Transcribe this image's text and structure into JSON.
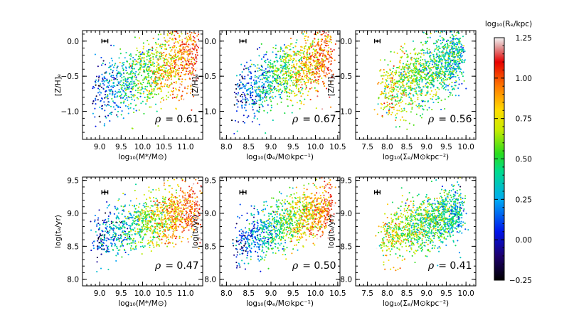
{
  "chart_data": {
    "type": "scatter",
    "colorbar": {
      "label": "log₁₀(Rₑ/kpc)",
      "range": [
        -0.25,
        1.25
      ],
      "ticks": [
        "−0.25",
        "0.00",
        "0.25",
        "0.50",
        "0.75",
        "1.00",
        "1.25"
      ],
      "tick_values": [
        -0.25,
        0,
        0.25,
        0.5,
        0.75,
        1.0,
        1.25
      ]
    },
    "panels": [
      {
        "id": "p1",
        "row": 0,
        "col": 0,
        "xlabel": "log₁₀(M*/M⊙)",
        "ylabel": "[Z/H]ₑ",
        "xlim": [
          8.6,
          11.4
        ],
        "ylim": [
          -1.4,
          0.15
        ],
        "xticks": [
          9.0,
          9.5,
          10.0,
          10.5,
          11.0
        ],
        "xtick_labels": [
          "9.0",
          "9.5",
          "10.0",
          "10.5",
          "11.0"
        ],
        "yticks": [
          0.0,
          -0.5,
          -1.0
        ],
        "ytick_labels": [
          "0.0",
          "−0.5",
          "−1.0"
        ],
        "annotation_symbol": "ρ",
        "annotation_value": "= 0.61",
        "errorbar": {
          "x": 9.12,
          "y": 0.0,
          "xerr": 0.07,
          "yerr": 0.02
        },
        "trend": {
          "x_range": [
            8.85,
            11.3
          ],
          "y_at_xmin": -0.72,
          "y_at_xmax": -0.22,
          "scatter": 0.24,
          "n_points": 1300,
          "color_slope": 0.45,
          "color_center": 10.0
        }
      },
      {
        "id": "p2",
        "row": 0,
        "col": 1,
        "xlabel": "log₁₀(Φₑ/M⊙kpc⁻¹)",
        "ylabel": "[Z/H]ₑ",
        "xlim": [
          7.85,
          10.55
        ],
        "ylim": [
          -1.4,
          0.15
        ],
        "xticks": [
          8.0,
          8.5,
          9.0,
          9.5,
          10.0,
          10.5
        ],
        "xtick_labels": [
          "8.0",
          "8.5",
          "9.0",
          "9.5",
          "10.0",
          "10.5"
        ],
        "yticks": [
          0.0,
          -0.5,
          -1.0
        ],
        "ytick_labels": [
          "0.0",
          "−0.5",
          "−1.0"
        ],
        "annotation_symbol": "ρ",
        "annotation_value": "= 0.67",
        "errorbar": {
          "x": 8.37,
          "y": 0.0,
          "xerr": 0.07,
          "yerr": 0.02
        },
        "trend": {
          "x_range": [
            8.2,
            10.35
          ],
          "y_at_xmin": -0.8,
          "y_at_xmax": -0.18,
          "scatter": 0.22,
          "n_points": 1300,
          "color_slope": 0.5,
          "color_center": 9.3
        }
      },
      {
        "id": "p3",
        "row": 0,
        "col": 2,
        "xlabel": "log₁₀(Σₑ/M⊙kpc⁻²)",
        "ylabel": "[Z/H]ₑ",
        "xlim": [
          7.2,
          10.25
        ],
        "ylim": [
          -1.4,
          0.15
        ],
        "xticks": [
          7.5,
          8.0,
          8.5,
          9.0,
          9.5,
          10.0
        ],
        "xtick_labels": [
          "7.5",
          "8.0",
          "8.5",
          "9.0",
          "9.5",
          "10.0"
        ],
        "yticks": [
          0.0,
          -0.5,
          -1.0
        ],
        "ytick_labels": [
          "0.0",
          "−0.5",
          "−1.0"
        ],
        "annotation_symbol": "ρ",
        "annotation_value": "= 0.56",
        "errorbar": {
          "x": 7.75,
          "y": 0.0,
          "xerr": 0.07,
          "yerr": 0.02
        },
        "trend": {
          "x_range": [
            7.8,
            9.9
          ],
          "y_at_xmin": -0.75,
          "y_at_xmax": -0.2,
          "scatter": 0.23,
          "n_points": 1300,
          "color_slope": -0.2,
          "color_center": 8.8
        }
      },
      {
        "id": "p4",
        "row": 1,
        "col": 0,
        "xlabel": "log₁₀(M*/M⊙)",
        "ylabel": "log(tₑ/yr)",
        "xlim": [
          8.6,
          11.4
        ],
        "ylim": [
          7.9,
          9.55
        ],
        "xticks": [
          9.0,
          9.5,
          10.0,
          10.5,
          11.0
        ],
        "xtick_labels": [
          "9.0",
          "9.5",
          "10.0",
          "10.5",
          "11.0"
        ],
        "yticks": [
          8.0,
          8.5,
          9.0,
          9.5
        ],
        "ytick_labels": [
          "8.0",
          "8.5",
          "9.0",
          "9.5"
        ],
        "annotation_symbol": "ρ",
        "annotation_value": "= 0.47",
        "errorbar": {
          "x": 9.12,
          "y": 9.32,
          "xerr": 0.07,
          "yerr": 0.04
        },
        "trend": {
          "x_range": [
            8.85,
            11.3
          ],
          "y_at_xmin": 8.62,
          "y_at_xmax": 9.08,
          "scatter": 0.2,
          "n_points": 1300,
          "color_slope": 0.45,
          "color_center": 10.0
        }
      },
      {
        "id": "p5",
        "row": 1,
        "col": 1,
        "xlabel": "log₁₀(Φₑ/M⊙kpc⁻¹)",
        "ylabel": "log(tₑ/yr)",
        "xlim": [
          7.85,
          10.55
        ],
        "ylim": [
          7.9,
          9.55
        ],
        "xticks": [
          8.0,
          8.5,
          9.0,
          9.5,
          10.0,
          10.5
        ],
        "xtick_labels": [
          "8.0",
          "8.5",
          "9.0",
          "9.5",
          "10.0",
          "10.5"
        ],
        "yticks": [
          8.0,
          8.5,
          9.0,
          9.5
        ],
        "ytick_labels": [
          "8.0",
          "8.5",
          "9.0",
          "9.5"
        ],
        "annotation_symbol": "ρ",
        "annotation_value": "= 0.50",
        "errorbar": {
          "x": 8.37,
          "y": 9.32,
          "xerr": 0.07,
          "yerr": 0.04
        },
        "trend": {
          "x_range": [
            8.2,
            10.35
          ],
          "y_at_xmin": 8.55,
          "y_at_xmax": 9.1,
          "scatter": 0.2,
          "n_points": 1300,
          "color_slope": 0.5,
          "color_center": 9.3
        }
      },
      {
        "id": "p6",
        "row": 1,
        "col": 2,
        "xlabel": "log₁₀(Σₑ/M⊙kpc⁻²)",
        "ylabel": "log(tₑ/yr)",
        "xlim": [
          7.2,
          10.25
        ],
        "ylim": [
          7.9,
          9.55
        ],
        "xticks": [
          7.5,
          8.0,
          8.5,
          9.0,
          9.5,
          10.0
        ],
        "xtick_labels": [
          "7.5",
          "8.0",
          "8.5",
          "9.0",
          "9.5",
          "10.0"
        ],
        "yticks": [
          8.0,
          8.5,
          9.0,
          9.5
        ],
        "ytick_labels": [
          "8.0",
          "8.5",
          "9.0",
          "9.5"
        ],
        "annotation_symbol": "ρ",
        "annotation_value": "= 0.41",
        "errorbar": {
          "x": 7.75,
          "y": 9.32,
          "xerr": 0.07,
          "yerr": 0.04
        },
        "trend": {
          "x_range": [
            7.8,
            9.9
          ],
          "y_at_xmin": 8.6,
          "y_at_xmax": 9.05,
          "scatter": 0.2,
          "n_points": 1300,
          "color_slope": -0.2,
          "color_center": 8.8
        }
      }
    ]
  }
}
